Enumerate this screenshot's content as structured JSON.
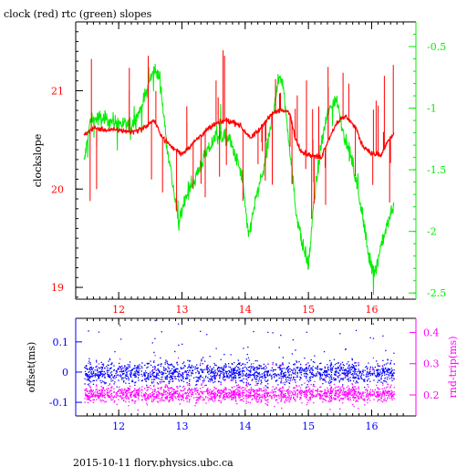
{
  "title": "clock (red) rtc (green) slopes",
  "footer": "2015-10-11 flory.physics.ubc.ca",
  "colors": {
    "clock": "#ff0000",
    "rtc": "#00ee00",
    "offset": "#0000ff",
    "rtt": "#ff00ff",
    "frame": "#000000"
  },
  "chart_data": [
    {
      "type": "line",
      "title": "clock (red) rtc (green) slopes",
      "xlabel": "",
      "ylabel": "clockslope",
      "y2label": "",
      "xlim": [
        11.32,
        16.7
      ],
      "ylim": [
        18.88,
        21.7
      ],
      "y2lim": [
        -2.55,
        -0.3
      ],
      "x_ticks": [
        "12",
        "13",
        "14",
        "15",
        "16"
      ],
      "y_ticks": [
        "19",
        "20",
        "21"
      ],
      "y2_ticks": [
        "-0.5",
        "-1",
        "-1.5",
        "-2",
        "-2.5"
      ],
      "series": [
        {
          "axis": "left",
          "color": "#ff0000",
          "points": [
            [
              11.45,
              20.55
            ],
            [
              11.6,
              20.62
            ],
            [
              11.8,
              20.6
            ],
            [
              12.0,
              20.6
            ],
            [
              12.2,
              20.58
            ],
            [
              12.4,
              20.62
            ],
            [
              12.55,
              20.7
            ],
            [
              12.7,
              20.52
            ],
            [
              12.85,
              20.42
            ],
            [
              13.0,
              20.36
            ],
            [
              13.15,
              20.45
            ],
            [
              13.3,
              20.55
            ],
            [
              13.5,
              20.65
            ],
            [
              13.7,
              20.7
            ],
            [
              13.9,
              20.66
            ],
            [
              14.0,
              20.58
            ],
            [
              14.1,
              20.52
            ],
            [
              14.25,
              20.62
            ],
            [
              14.4,
              20.76
            ],
            [
              14.55,
              20.8
            ],
            [
              14.7,
              20.78
            ],
            [
              14.8,
              20.5
            ],
            [
              14.9,
              20.38
            ],
            [
              15.05,
              20.34
            ],
            [
              15.2,
              20.32
            ],
            [
              15.3,
              20.48
            ],
            [
              15.45,
              20.68
            ],
            [
              15.6,
              20.74
            ],
            [
              15.75,
              20.62
            ],
            [
              15.85,
              20.45
            ],
            [
              16.0,
              20.36
            ],
            [
              16.15,
              20.34
            ],
            [
              16.25,
              20.48
            ],
            [
              16.35,
              20.56
            ]
          ]
        },
        {
          "axis": "right",
          "color": "#00ee00",
          "points": [
            [
              11.45,
              -1.45
            ],
            [
              11.55,
              -1.1
            ],
            [
              11.7,
              -1.08
            ],
            [
              11.85,
              -1.1
            ],
            [
              12.0,
              -1.12
            ],
            [
              12.2,
              -1.15
            ],
            [
              12.35,
              -1.0
            ],
            [
              12.45,
              -0.85
            ],
            [
              12.55,
              -0.68
            ],
            [
              12.65,
              -0.75
            ],
            [
              12.75,
              -1.25
            ],
            [
              12.85,
              -1.6
            ],
            [
              12.95,
              -1.95
            ],
            [
              13.05,
              -1.72
            ],
            [
              13.2,
              -1.58
            ],
            [
              13.35,
              -1.4
            ],
            [
              13.55,
              -1.22
            ],
            [
              13.75,
              -1.25
            ],
            [
              13.95,
              -1.55
            ],
            [
              14.05,
              -2.05
            ],
            [
              14.15,
              -1.78
            ],
            [
              14.3,
              -1.48
            ],
            [
              14.45,
              -1.0
            ],
            [
              14.55,
              -0.72
            ],
            [
              14.6,
              -0.82
            ],
            [
              14.7,
              -1.3
            ],
            [
              14.8,
              -1.82
            ],
            [
              14.9,
              -2.1
            ],
            [
              15.0,
              -2.28
            ],
            [
              15.1,
              -1.7
            ],
            [
              15.2,
              -1.3
            ],
            [
              15.3,
              -1.05
            ],
            [
              15.4,
              -0.95
            ],
            [
              15.45,
              -0.92
            ],
            [
              15.55,
              -1.2
            ],
            [
              15.7,
              -1.45
            ],
            [
              15.85,
              -1.85
            ],
            [
              15.95,
              -2.2
            ],
            [
              16.05,
              -2.35
            ],
            [
              16.15,
              -2.1
            ],
            [
              16.25,
              -1.95
            ],
            [
              16.35,
              -1.78
            ]
          ]
        }
      ]
    },
    {
      "type": "scatter",
      "title": "",
      "xlabel": "",
      "ylabel": "offset(ms)",
      "y2label": "rnd-trip(ms)",
      "xlim": [
        11.32,
        16.7
      ],
      "ylim": [
        -0.145,
        0.178
      ],
      "y2lim": [
        0.133,
        0.445
      ],
      "x_ticks": [
        "12",
        "13",
        "14",
        "15",
        "16"
      ],
      "y_ticks": [
        "0.1",
        "0",
        "-0.1"
      ],
      "y2_ticks": [
        "0.4",
        "0.3",
        "0.2"
      ],
      "series": [
        {
          "axis": "left",
          "color": "#0000ff",
          "x_range": [
            11.45,
            16.35
          ],
          "center": 0.0,
          "spread": 0.035
        },
        {
          "axis": "right",
          "color": "#ff00ff",
          "x_range": [
            11.45,
            16.35
          ],
          "center": 0.205,
          "spread": 0.025
        }
      ]
    }
  ]
}
